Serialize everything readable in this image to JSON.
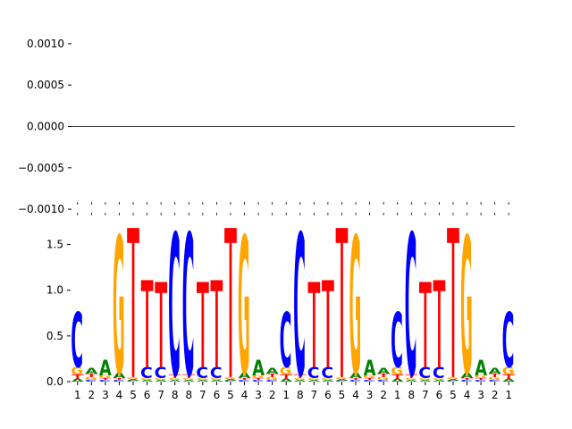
{
  "chart_data": [
    {
      "type": "line",
      "title": "",
      "xlabel": "",
      "ylabel": "",
      "ylim": [
        -0.00115,
        0.00115
      ],
      "yticks": [
        "0.0010",
        "0.0005",
        "0.0000",
        "−0.0005",
        "−0.0010"
      ],
      "ytick_values": [
        0.001,
        0.0005,
        0.0,
        -0.0005,
        -0.001
      ],
      "series": [
        {
          "values": [
            0,
            0
          ]
        }
      ],
      "grid": false
    },
    {
      "type": "bar",
      "subtype": "sequence-logo",
      "title": "",
      "xlabel": "",
      "ylabel": "",
      "ylim": [
        0,
        1.75
      ],
      "yticks": [
        "0.0",
        "0.5",
        "1.0",
        "1.5"
      ],
      "ytick_values": [
        0,
        0.5,
        1.0,
        1.5
      ],
      "categories": [
        "1",
        "2",
        "3",
        "4",
        "5",
        "6",
        "7",
        "8",
        "8",
        "7",
        "6",
        "5",
        "4",
        "3",
        "2",
        "1",
        "8",
        "7",
        "6",
        "5",
        "4",
        "3",
        "2",
        "1",
        "8",
        "7",
        "6",
        "5",
        "4",
        "3",
        "2",
        "1"
      ],
      "colors": {
        "A": "#008000",
        "C": "#0000ff",
        "G": "#ffa500",
        "T": "#ff0000"
      },
      "letters": [
        "A",
        "C",
        "G",
        "T"
      ],
      "positions": [
        {
          "A": 0.03,
          "C": 0.6,
          "G": 0.08,
          "T": 0.05
        },
        {
          "A": 0.06,
          "C": 0.02,
          "G": 0.03,
          "T": 0.04
        },
        {
          "A": 0.17,
          "C": 0.02,
          "G": 0.03,
          "T": 0.02
        },
        {
          "A": 0.06,
          "C": 0.02,
          "G": 1.5,
          "T": 0.02
        },
        {
          "A": 0.02,
          "C": 0.01,
          "G": 0.02,
          "T": 1.63
        },
        {
          "A": 0.02,
          "C": 0.12,
          "G": 0.02,
          "T": 0.95
        },
        {
          "A": 0.02,
          "C": 0.12,
          "G": 0.02,
          "T": 0.93
        },
        {
          "A": 0.02,
          "C": 1.55,
          "G": 0.02,
          "T": 0.04
        },
        {
          "A": 0.02,
          "C": 1.55,
          "G": 0.02,
          "T": 0.04
        },
        {
          "A": 0.02,
          "C": 0.12,
          "G": 0.02,
          "T": 0.93
        },
        {
          "A": 0.02,
          "C": 0.12,
          "G": 0.02,
          "T": 0.95
        },
        {
          "A": 0.02,
          "C": 0.01,
          "G": 0.02,
          "T": 1.63
        },
        {
          "A": 0.06,
          "C": 0.02,
          "G": 1.5,
          "T": 0.02
        },
        {
          "A": 0.17,
          "C": 0.02,
          "G": 0.03,
          "T": 0.02
        },
        {
          "A": 0.06,
          "C": 0.02,
          "G": 0.03,
          "T": 0.04
        },
        {
          "A": 0.03,
          "C": 0.6,
          "G": 0.08,
          "T": 0.05
        },
        {
          "A": 0.02,
          "C": 1.55,
          "G": 0.02,
          "T": 0.04
        },
        {
          "A": 0.02,
          "C": 0.12,
          "G": 0.02,
          "T": 0.93
        },
        {
          "A": 0.02,
          "C": 0.12,
          "G": 0.02,
          "T": 0.95
        },
        {
          "A": 0.02,
          "C": 0.01,
          "G": 0.02,
          "T": 1.63
        },
        {
          "A": 0.06,
          "C": 0.02,
          "G": 1.5,
          "T": 0.02
        },
        {
          "A": 0.17,
          "C": 0.02,
          "G": 0.03,
          "T": 0.02
        },
        {
          "A": 0.06,
          "C": 0.02,
          "G": 0.03,
          "T": 0.04
        },
        {
          "A": 0.03,
          "C": 0.6,
          "G": 0.08,
          "T": 0.05
        },
        {
          "A": 0.02,
          "C": 1.55,
          "G": 0.02,
          "T": 0.04
        },
        {
          "A": 0.02,
          "C": 0.12,
          "G": 0.02,
          "T": 0.93
        },
        {
          "A": 0.02,
          "C": 0.12,
          "G": 0.02,
          "T": 0.95
        },
        {
          "A": 0.02,
          "C": 0.01,
          "G": 0.02,
          "T": 1.63
        },
        {
          "A": 0.06,
          "C": 0.02,
          "G": 1.5,
          "T": 0.02
        },
        {
          "A": 0.17,
          "C": 0.02,
          "G": 0.03,
          "T": 0.02
        },
        {
          "A": 0.06,
          "C": 0.02,
          "G": 0.03,
          "T": 0.04
        },
        {
          "A": 0.03,
          "C": 0.6,
          "G": 0.08,
          "T": 0.05
        }
      ],
      "grid": false
    }
  ]
}
